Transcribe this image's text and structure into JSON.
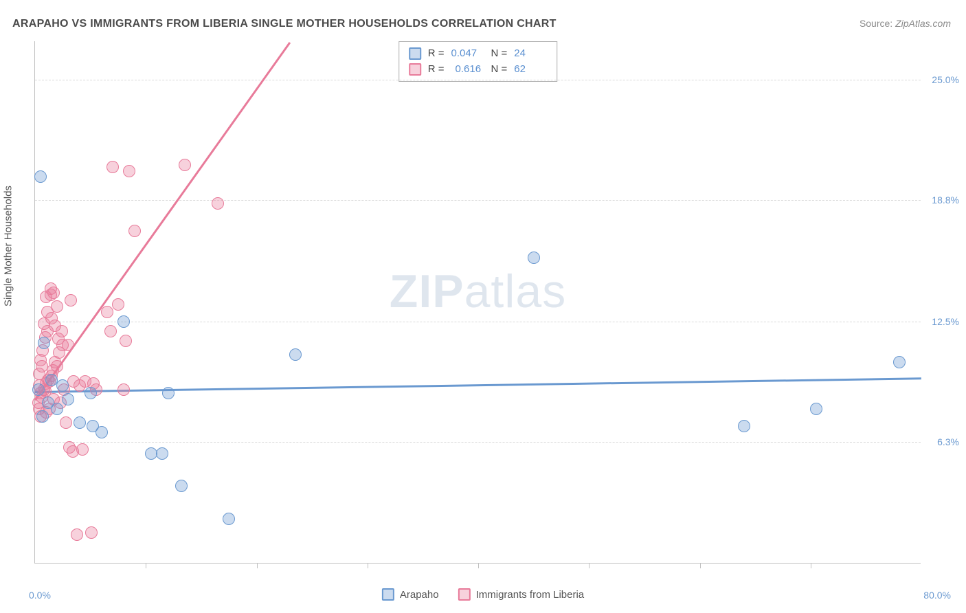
{
  "title": "ARAPAHO VS IMMIGRANTS FROM LIBERIA SINGLE MOTHER HOUSEHOLDS CORRELATION CHART",
  "source_label": "Source:",
  "source_value": "ZipAtlas.com",
  "y_axis_title": "Single Mother Households",
  "watermark_bold": "ZIP",
  "watermark_rest": "atlas",
  "chart": {
    "type": "scatter",
    "background_color": "#ffffff",
    "grid_color": "#d8d8d8",
    "axis_color": "#c0c0c0",
    "xlim": [
      0,
      80
    ],
    "ylim": [
      0,
      27
    ],
    "x_ticks": [
      10,
      20,
      30,
      40,
      50,
      60,
      70
    ],
    "x_tick_min_label": "0.0%",
    "x_tick_max_label": "80.0%",
    "y_gridlines": [
      6.3,
      12.5,
      18.8,
      25.0
    ],
    "y_tick_labels": [
      "6.3%",
      "12.5%",
      "18.8%",
      "25.0%"
    ],
    "label_color": "#6a99d0",
    "label_fontsize": 14,
    "marker_radius": 9,
    "marker_fill_opacity": 0.35,
    "marker_stroke_width": 1.5,
    "series": [
      {
        "name": "Arapaho",
        "color": "#6a99d0",
        "fill": "rgba(106,153,208,0.35)",
        "R": "0.047",
        "N": "24",
        "trend": {
          "x1": 0,
          "y1": 8.9,
          "x2": 80,
          "y2": 9.6
        },
        "points": [
          [
            0.5,
            20.0
          ],
          [
            0.8,
            11.4
          ],
          [
            5.0,
            8.8
          ],
          [
            8.0,
            12.5
          ],
          [
            12.0,
            8.8
          ],
          [
            4.0,
            7.3
          ],
          [
            5.2,
            7.1
          ],
          [
            10.5,
            5.7
          ],
          [
            11.5,
            5.7
          ],
          [
            13.2,
            4.0
          ],
          [
            17.5,
            2.3
          ],
          [
            23.5,
            10.8
          ],
          [
            45.0,
            15.8
          ],
          [
            64.0,
            7.1
          ],
          [
            70.5,
            8.0
          ],
          [
            78.0,
            10.4
          ],
          [
            3.0,
            8.5
          ],
          [
            2.0,
            8.0
          ],
          [
            1.5,
            9.5
          ],
          [
            0.7,
            7.6
          ],
          [
            2.5,
            9.2
          ],
          [
            6.0,
            6.8
          ],
          [
            1.2,
            8.3
          ],
          [
            0.3,
            9.0
          ]
        ]
      },
      {
        "name": "Immigrants from Liberia",
        "color": "#e87b9a",
        "fill": "rgba(232,123,154,0.35)",
        "R": "0.616",
        "N": "62",
        "trend": {
          "x1": 0,
          "y1": 8.5,
          "x2": 23,
          "y2": 27.0
        },
        "points": [
          [
            0.3,
            8.3
          ],
          [
            0.5,
            8.8
          ],
          [
            0.8,
            9.0
          ],
          [
            1.0,
            9.3
          ],
          [
            1.2,
            9.5
          ],
          [
            1.3,
            9.4
          ],
          [
            1.5,
            9.7
          ],
          [
            0.4,
            9.2
          ],
          [
            0.6,
            8.6
          ],
          [
            0.9,
            8.9
          ],
          [
            1.6,
            10.0
          ],
          [
            1.8,
            10.4
          ],
          [
            2.2,
            10.9
          ],
          [
            2.0,
            10.2
          ],
          [
            2.5,
            11.3
          ],
          [
            1.0,
            13.8
          ],
          [
            1.4,
            13.9
          ],
          [
            1.1,
            13.0
          ],
          [
            1.5,
            12.7
          ],
          [
            2.0,
            13.3
          ],
          [
            1.8,
            12.3
          ],
          [
            2.4,
            12.0
          ],
          [
            3.2,
            13.6
          ],
          [
            3.0,
            11.3
          ],
          [
            3.5,
            9.4
          ],
          [
            4.5,
            9.4
          ],
          [
            5.3,
            9.3
          ],
          [
            8.0,
            9.0
          ],
          [
            8.2,
            11.5
          ],
          [
            6.5,
            13.0
          ],
          [
            6.8,
            12.0
          ],
          [
            7.5,
            13.4
          ],
          [
            9.0,
            17.2
          ],
          [
            7.0,
            20.5
          ],
          [
            8.5,
            20.3
          ],
          [
            13.5,
            20.6
          ],
          [
            16.5,
            18.6
          ],
          [
            0.5,
            10.5
          ],
          [
            0.7,
            11.0
          ],
          [
            0.9,
            11.7
          ],
          [
            1.1,
            12.0
          ],
          [
            0.4,
            9.8
          ],
          [
            0.6,
            10.2
          ],
          [
            2.3,
            8.3
          ],
          [
            2.8,
            7.3
          ],
          [
            3.1,
            6.0
          ],
          [
            3.4,
            5.8
          ],
          [
            4.3,
            5.9
          ],
          [
            5.1,
            1.6
          ],
          [
            3.8,
            1.5
          ],
          [
            1.7,
            8.5
          ],
          [
            1.3,
            8.0
          ],
          [
            0.5,
            7.6
          ],
          [
            0.4,
            8.0
          ],
          [
            2.6,
            9.0
          ],
          [
            4.0,
            9.2
          ],
          [
            1.0,
            7.8
          ],
          [
            1.4,
            14.2
          ],
          [
            1.7,
            14.0
          ],
          [
            0.8,
            12.4
          ],
          [
            2.1,
            11.6
          ],
          [
            5.5,
            9.0
          ]
        ]
      }
    ]
  },
  "stats_legend": {
    "r_label": "R =",
    "n_label": "N ="
  },
  "bottom_legend_labels": [
    "Arapaho",
    "Immigrants from Liberia"
  ]
}
